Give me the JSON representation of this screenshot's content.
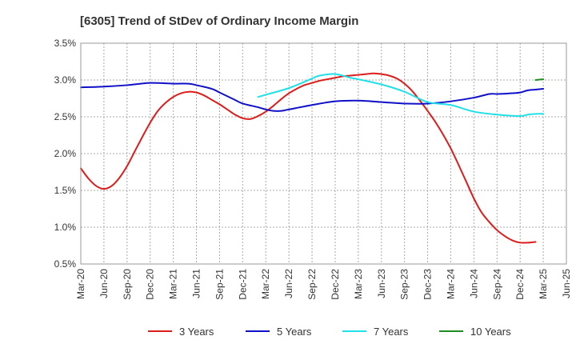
{
  "chart_data": {
    "type": "line",
    "title": "[6305]  Trend of StDev of Ordinary Income Margin",
    "xlabel": "",
    "ylabel": "",
    "x_ticks": [
      "Mar-20",
      "Jun-20",
      "Sep-20",
      "Dec-20",
      "Mar-21",
      "Jun-21",
      "Sep-21",
      "Dec-21",
      "Mar-22",
      "Jun-22",
      "Sep-22",
      "Dec-22",
      "Mar-23",
      "Jun-23",
      "Sep-23",
      "Dec-23",
      "Mar-24",
      "Jun-24",
      "Sep-24",
      "Dec-24",
      "Mar-25",
      "Jun-25"
    ],
    "y_ticks": [
      "0.5%",
      "1.0%",
      "1.5%",
      "2.0%",
      "2.5%",
      "3.0%",
      "3.5%"
    ],
    "ylim": [
      0.5,
      3.5
    ],
    "y_unit": "%",
    "grid": true,
    "legend_position": "bottom",
    "series": [
      {
        "name": "3 Years",
        "color": "#dd1c1c",
        "points": [
          [
            "Mar-20",
            1.8
          ],
          [
            "Apr-20",
            1.66
          ],
          [
            "May-20",
            1.56
          ],
          [
            "Jun-20",
            1.52
          ],
          [
            "Jul-20",
            1.56
          ],
          [
            "Aug-20",
            1.67
          ],
          [
            "Sep-20",
            1.83
          ],
          [
            "Oct-20",
            2.03
          ],
          [
            "Nov-20",
            2.23
          ],
          [
            "Dec-20",
            2.42
          ],
          [
            "Jan-21",
            2.58
          ],
          [
            "Feb-21",
            2.69
          ],
          [
            "Mar-21",
            2.77
          ],
          [
            "Apr-21",
            2.82
          ],
          [
            "May-21",
            2.84
          ],
          [
            "Jun-21",
            2.83
          ],
          [
            "Jul-21",
            2.79
          ],
          [
            "Aug-21",
            2.73
          ],
          [
            "Sep-21",
            2.67
          ],
          [
            "Oct-21",
            2.6
          ],
          [
            "Nov-21",
            2.53
          ],
          [
            "Dec-21",
            2.48
          ],
          [
            "Jan-22",
            2.47
          ],
          [
            "Feb-22",
            2.51
          ],
          [
            "Mar-22",
            2.57
          ],
          [
            "Apr-22",
            2.65
          ],
          [
            "May-22",
            2.74
          ],
          [
            "Jun-22",
            2.82
          ],
          [
            "Jul-22",
            2.88
          ],
          [
            "Aug-22",
            2.93
          ],
          [
            "Sep-22",
            2.96
          ],
          [
            "Oct-22",
            2.99
          ],
          [
            "Nov-22",
            3.01
          ],
          [
            "Dec-22",
            3.03
          ],
          [
            "Jan-23",
            3.05
          ],
          [
            "Feb-23",
            3.06
          ],
          [
            "Mar-23",
            3.07
          ],
          [
            "Apr-23",
            3.08
          ],
          [
            "May-23",
            3.09
          ],
          [
            "Jun-23",
            3.08
          ],
          [
            "Jul-23",
            3.06
          ],
          [
            "Aug-23",
            3.02
          ],
          [
            "Sep-23",
            2.95
          ],
          [
            "Oct-23",
            2.85
          ],
          [
            "Nov-23",
            2.72
          ],
          [
            "Dec-23",
            2.58
          ],
          [
            "Jan-24",
            2.43
          ],
          [
            "Feb-24",
            2.26
          ],
          [
            "Mar-24",
            2.07
          ],
          [
            "Apr-24",
            1.85
          ],
          [
            "May-24",
            1.62
          ],
          [
            "Jun-24",
            1.39
          ],
          [
            "Jul-24",
            1.2
          ],
          [
            "Aug-24",
            1.07
          ],
          [
            "Sep-24",
            0.96
          ],
          [
            "Oct-24",
            0.88
          ],
          [
            "Nov-24",
            0.82
          ],
          [
            "Dec-24",
            0.79
          ],
          [
            "Jan-25",
            0.79
          ],
          [
            "Feb-25",
            0.8
          ]
        ]
      },
      {
        "name": "5 Years",
        "color": "#1010c8",
        "points": [
          [
            "Mar-20",
            2.9
          ],
          [
            "Jun-20",
            2.91
          ],
          [
            "Sep-20",
            2.93
          ],
          [
            "Dec-20",
            2.96
          ],
          [
            "Mar-21",
            2.95
          ],
          [
            "May-21",
            2.95
          ],
          [
            "Jun-21",
            2.93
          ],
          [
            "Aug-21",
            2.88
          ],
          [
            "Sep-21",
            2.83
          ],
          [
            "Nov-21",
            2.73
          ],
          [
            "Dec-21",
            2.68
          ],
          [
            "Feb-22",
            2.63
          ],
          [
            "Mar-22",
            2.6
          ],
          [
            "Apr-22",
            2.58
          ],
          [
            "May-22",
            2.58
          ],
          [
            "Jun-22",
            2.6
          ],
          [
            "Sep-22",
            2.66
          ],
          [
            "Dec-22",
            2.71
          ],
          [
            "Mar-23",
            2.72
          ],
          [
            "Jun-23",
            2.7
          ],
          [
            "Sep-23",
            2.68
          ],
          [
            "Dec-23",
            2.68
          ],
          [
            "Mar-24",
            2.71
          ],
          [
            "Jun-24",
            2.76
          ],
          [
            "Aug-24",
            2.81
          ],
          [
            "Sep-24",
            2.81
          ],
          [
            "Nov-24",
            2.82
          ],
          [
            "Dec-24",
            2.83
          ],
          [
            "Jan-25",
            2.86
          ],
          [
            "Feb-25",
            2.87
          ],
          [
            "Mar-25",
            2.88
          ]
        ]
      },
      {
        "name": "7 Years",
        "color": "#22e0e8",
        "points": [
          [
            "Feb-22",
            2.77
          ],
          [
            "Mar-22",
            2.8
          ],
          [
            "Jun-22",
            2.89
          ],
          [
            "Sep-22",
            3.02
          ],
          [
            "Oct-22",
            3.06
          ],
          [
            "Dec-22",
            3.08
          ],
          [
            "Feb-23",
            3.03
          ],
          [
            "Mar-23",
            3.01
          ],
          [
            "Jun-23",
            2.94
          ],
          [
            "Sep-23",
            2.84
          ],
          [
            "Dec-23",
            2.7
          ],
          [
            "Mar-24",
            2.66
          ],
          [
            "Jun-24",
            2.57
          ],
          [
            "Sep-24",
            2.53
          ],
          [
            "Dec-24",
            2.51
          ],
          [
            "Jan-25",
            2.53
          ],
          [
            "Feb-25",
            2.54
          ],
          [
            "Mar-25",
            2.54
          ]
        ]
      },
      {
        "name": "10 Years",
        "color": "#1e8c1e",
        "points": [
          [
            "Feb-25",
            3.0
          ],
          [
            "Mar-25",
            3.01
          ]
        ]
      }
    ]
  }
}
